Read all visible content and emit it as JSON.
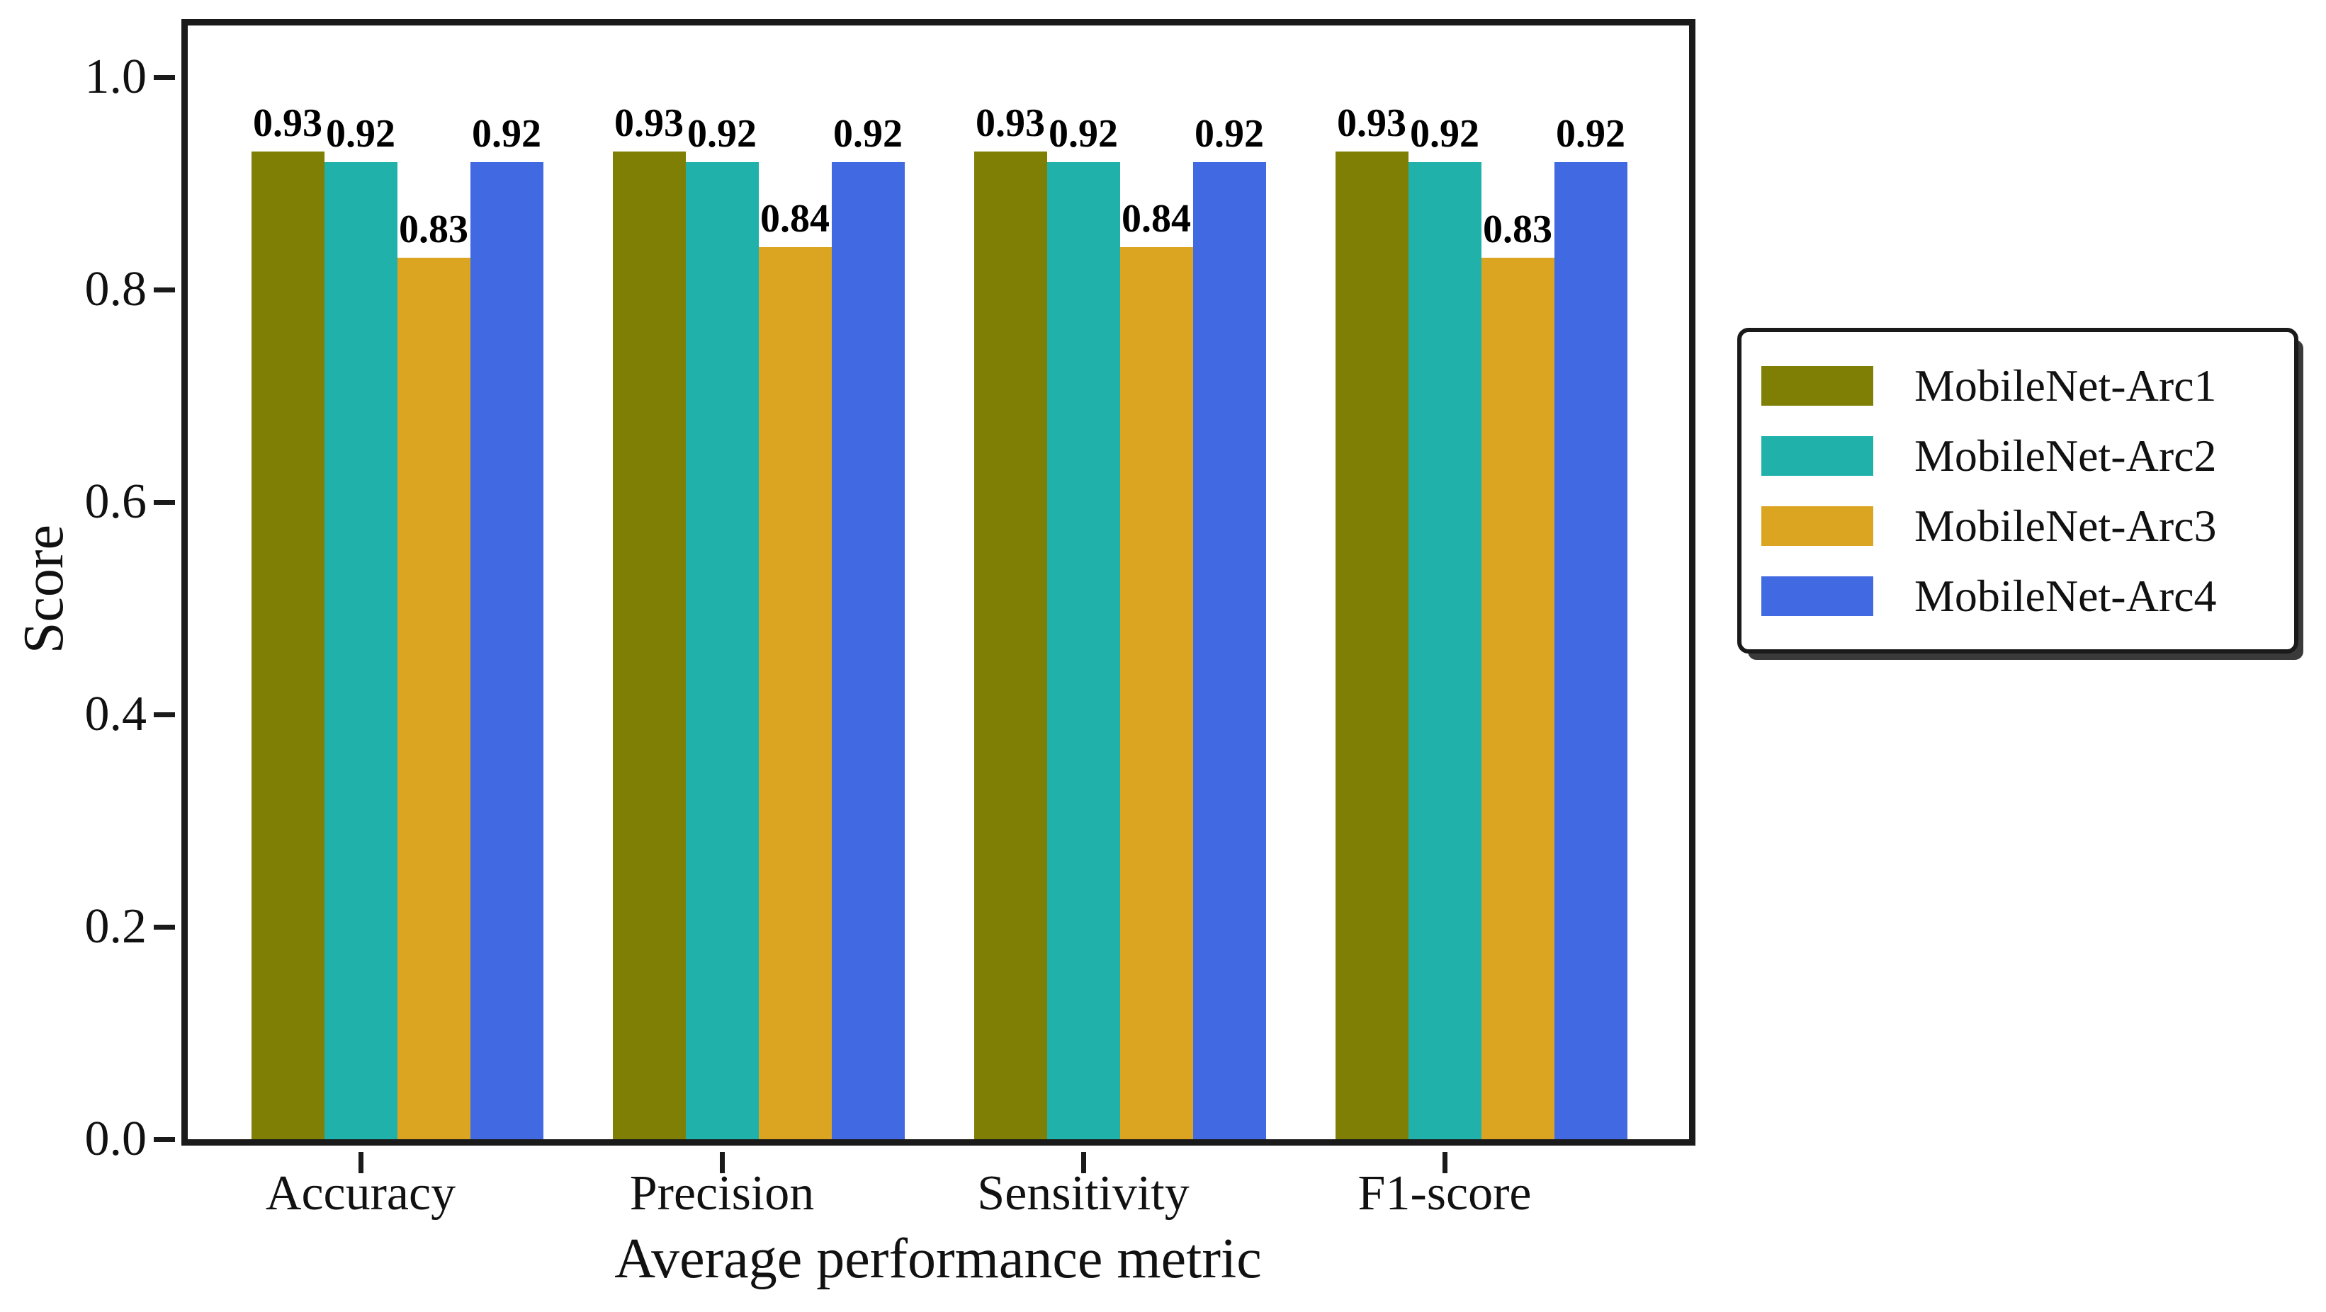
{
  "figure": {
    "background": "#ffffff",
    "frame_color": "#1a1a1a",
    "text_color": "#111111"
  },
  "chart_data": {
    "type": "bar",
    "title": "",
    "xlabel": "Average performance metric",
    "ylabel": "Score",
    "categories": [
      "Accuracy",
      "Precision",
      "Sensitivity",
      "F1-score"
    ],
    "series": [
      {
        "name": "MobileNet-Arc1",
        "color": "#7f7f05",
        "values": [
          0.93,
          0.93,
          0.93,
          0.93
        ],
        "value_labels": [
          "0.93",
          "0.93",
          "0.93",
          "0.93"
        ]
      },
      {
        "name": "MobileNet-Arc2",
        "color": "#20b2aa",
        "values": [
          0.92,
          0.92,
          0.92,
          0.92
        ],
        "value_labels": [
          "0.92",
          "0.92",
          "0.92",
          "0.92"
        ]
      },
      {
        "name": "MobileNet-Arc3",
        "color": "#dba521",
        "values": [
          0.83,
          0.84,
          0.84,
          0.83
        ],
        "value_labels": [
          "0.83",
          "0.84",
          "0.84",
          "0.83"
        ]
      },
      {
        "name": "MobileNet-Arc4",
        "color": "#4169e1",
        "values": [
          0.92,
          0.92,
          0.92,
          0.92
        ],
        "value_labels": [
          "0.92",
          "0.92",
          "0.92",
          "0.92"
        ]
      }
    ],
    "yticks": [
      "0.0",
      "0.2",
      "0.4",
      "0.6",
      "0.8",
      "1.0"
    ],
    "ylim": [
      0,
      1.05
    ],
    "grid": false,
    "legend_position": "right of plot, middle",
    "bar_value_labels_shown": true
  }
}
